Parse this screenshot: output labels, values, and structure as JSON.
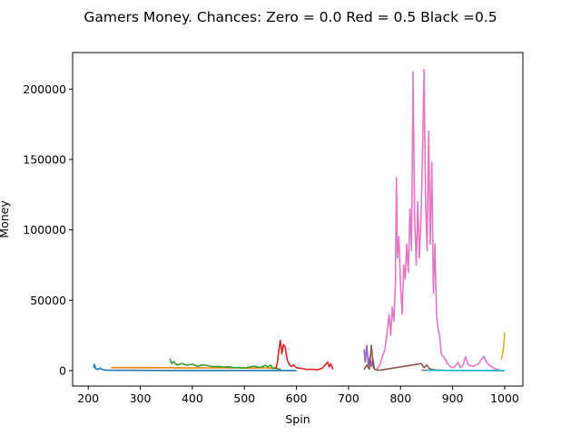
{
  "chart_data": {
    "type": "line",
    "title": "Gamers Money. Chances: Zero = 0.0  Red = 0.5  Black =0.5",
    "xlabel": "Spin",
    "ylabel": "Money",
    "xlim": [
      170,
      1035
    ],
    "ylim": [
      -11000,
      226000
    ],
    "xticks": [
      200,
      300,
      400,
      500,
      600,
      700,
      800,
      900,
      1000
    ],
    "xtick_labels": [
      "200",
      "300",
      "400",
      "500",
      "600",
      "700",
      "800",
      "900",
      "1000"
    ],
    "yticks": [
      0,
      50000,
      100000,
      150000,
      200000
    ],
    "ytick_labels": [
      "0",
      "50000",
      "100000",
      "150000",
      "200000"
    ],
    "grid": false,
    "series": [
      {
        "color": "#1f77b4",
        "x": [
          210,
          212,
          214,
          216,
          218,
          220,
          223,
          226,
          230,
          240,
          260,
          300,
          350,
          400,
          500,
          560,
          600
        ],
        "y": [
          2000,
          4300,
          1500,
          800,
          1200,
          900,
          1800,
          1000,
          400,
          300,
          200,
          150,
          100,
          80,
          60,
          50,
          30
        ]
      },
      {
        "color": "#ff7f0e",
        "x": [
          244,
          300,
          350,
          400,
          450,
          500,
          540,
          560
        ],
        "y": [
          2100,
          2000,
          2000,
          1900,
          2000,
          1800,
          1900,
          1800
        ]
      },
      {
        "color": "#2ca02c",
        "x": [
          357,
          360,
          364,
          370,
          380,
          390,
          400,
          410,
          420,
          430,
          440,
          450,
          460,
          470,
          480,
          490,
          500,
          510,
          520,
          530,
          540,
          545,
          550,
          555,
          560,
          565,
          570
        ],
        "y": [
          8500,
          5000,
          6500,
          4000,
          5000,
          3800,
          4500,
          3000,
          4000,
          3500,
          2800,
          3000,
          2500,
          2800,
          2000,
          2200,
          1800,
          2500,
          3200,
          2000,
          3800,
          2500,
          4000,
          1500,
          2000,
          1200,
          800
        ]
      },
      {
        "color": "#d62728",
        "x": [
          560,
          563,
          566,
          569,
          572,
          575,
          578,
          582,
          586,
          590,
          595,
          600,
          610,
          620,
          630,
          640,
          650,
          655,
          660,
          663,
          666,
          670
        ],
        "y": [
          1000,
          5000,
          14000,
          21500,
          12000,
          18500,
          17000,
          8000,
          4500,
          3000,
          4000,
          2000,
          1500,
          800,
          1000,
          500,
          1800,
          4000,
          6000,
          2500,
          4800,
          1000
        ]
      },
      {
        "color": "#9467bd",
        "x": [
          730,
          732,
          735,
          738,
          741,
          744,
          747,
          750
        ],
        "y": [
          15000,
          6000,
          18000,
          4000,
          10000,
          3000,
          8000,
          1000
        ]
      },
      {
        "color": "#8c564b",
        "x": [
          730,
          735,
          740,
          744,
          748,
          752,
          756,
          760,
          840,
          845,
          850,
          855,
          860,
          870,
          880
        ],
        "y": [
          500,
          4000,
          1000,
          18000,
          2000,
          600,
          400,
          200,
          5000,
          2000,
          4000,
          1500,
          800,
          400,
          200
        ]
      },
      {
        "color": "#e377c2",
        "x": [
          755,
          760,
          765,
          770,
          775,
          778,
          781,
          784,
          787,
          790,
          792,
          794,
          797,
          800,
          803,
          806,
          809,
          812,
          815,
          818,
          821,
          824,
          827,
          830,
          833,
          836,
          839,
          842,
          845,
          848,
          851,
          854,
          857,
          860,
          863,
          866,
          869,
          872,
          875,
          878,
          882,
          886,
          890,
          895,
          900,
          905,
          910,
          915,
          920,
          925,
          930,
          940,
          950,
          955,
          960,
          965,
          970,
          980,
          990
        ],
        "y": [
          1000,
          4000,
          10000,
          15000,
          30000,
          40000,
          25000,
          45000,
          35000,
          60000,
          137000,
          80000,
          95000,
          60000,
          40000,
          75000,
          65000,
          90000,
          70000,
          115000,
          85000,
          212000,
          110000,
          75000,
          120000,
          80000,
          105000,
          150000,
          214000,
          120000,
          85000,
          170000,
          90000,
          148000,
          55000,
          90000,
          40000,
          30000,
          25000,
          12000,
          10000,
          8000,
          5000,
          3000,
          2000,
          3000,
          6000,
          2000,
          4000,
          10000,
          4000,
          3000,
          5000,
          8000,
          10000,
          6000,
          4000,
          1500,
          500
        ]
      },
      {
        "color": "#7f7f7f",
        "x": [
          840,
          860,
          900,
          950,
          1000
        ],
        "y": [
          300,
          200,
          100,
          60,
          40
        ]
      },
      {
        "color": "#bcbd22",
        "x": [
          993,
          995,
          997,
          998,
          999,
          1000
        ],
        "y": [
          8000,
          10000,
          14000,
          18000,
          22000,
          27000
        ]
      },
      {
        "color": "#17becf",
        "x": [
          850,
          880,
          920,
          960,
          1000
        ],
        "y": [
          150,
          120,
          90,
          60,
          30
        ]
      }
    ]
  }
}
